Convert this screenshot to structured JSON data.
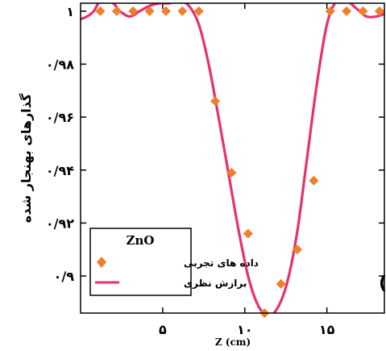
{
  "chart_data": {
    "type": "scatter+line",
    "xlabel": "Z (cm)",
    "ylabel": "گذارهای بهنجار شده",
    "panel_label": "(الف)",
    "xlim": [
      0,
      18.5
    ],
    "ylim": [
      0.886,
      1.003
    ],
    "x_ticks": [
      {
        "value": 5,
        "label": "۵"
      },
      {
        "value": 10,
        "label": "۱۰"
      },
      {
        "value": 15,
        "label": "۱۵"
      }
    ],
    "y_ticks": [
      {
        "value": 1.0,
        "label": "۱"
      },
      {
        "value": 0.98,
        "label": "۰/۹۸"
      },
      {
        "value": 0.96,
        "label": "۰/۹۶"
      },
      {
        "value": 0.94,
        "label": "۰/۹۴"
      },
      {
        "value": 0.92,
        "label": "۰/۹۲"
      },
      {
        "value": 0.9,
        "label": "۰/۹"
      }
    ],
    "grid": false,
    "legend": {
      "title": "ZnO",
      "placement": "bottom-left",
      "entries": [
        {
          "label": "داده های تجربی",
          "marker": "diamond",
          "color": "#f07f2a"
        },
        {
          "label": "برازش نظری",
          "marker": "line",
          "color": "#e8306e"
        }
      ]
    },
    "series": [
      {
        "name": "داده های تجربی",
        "kind": "scatter",
        "color": "#f07f2a",
        "x": [
          1.2,
          2.2,
          3.2,
          4.2,
          5.2,
          6.2,
          7.2,
          8.2,
          9.2,
          10.2,
          11.2,
          12.2,
          13.2,
          14.2,
          15.2,
          16.2,
          17.2,
          18.2
        ],
        "y": [
          1.0,
          1.0,
          1.0,
          1.0,
          1.0,
          1.0,
          1.0,
          0.966,
          0.939,
          0.916,
          0.886,
          0.897,
          0.91,
          0.936,
          1.0,
          1.0,
          1.0,
          1.0
        ]
      },
      {
        "name": "برازش نظری",
        "kind": "line",
        "color": "#e8306e",
        "x": [
          0,
          0.4,
          0.8,
          1.2,
          1.6,
          2.0,
          2.4,
          3.0,
          3.6,
          4.2,
          4.8,
          5.4,
          6.0,
          6.6,
          7.2,
          7.8,
          8.4,
          9.0,
          9.6,
          10.2,
          10.8,
          11.4,
          12.0,
          12.6,
          13.2,
          13.8,
          14.4,
          15.0,
          15.6,
          16.2,
          16.8,
          17.4,
          18.0,
          18.5
        ],
        "y": [
          0.997,
          0.998,
          1.0,
          1.004,
          1.004,
          1.003,
          1.0,
          0.998,
          1.0,
          1.002,
          1.003,
          1.003,
          1.004,
          1.002,
          0.995,
          0.98,
          0.96,
          0.939,
          0.918,
          0.9,
          0.889,
          0.885,
          0.888,
          0.898,
          0.917,
          0.945,
          0.973,
          0.995,
          1.004,
          1.004,
          1.001,
          0.998,
          0.998,
          0.999
        ]
      }
    ]
  }
}
